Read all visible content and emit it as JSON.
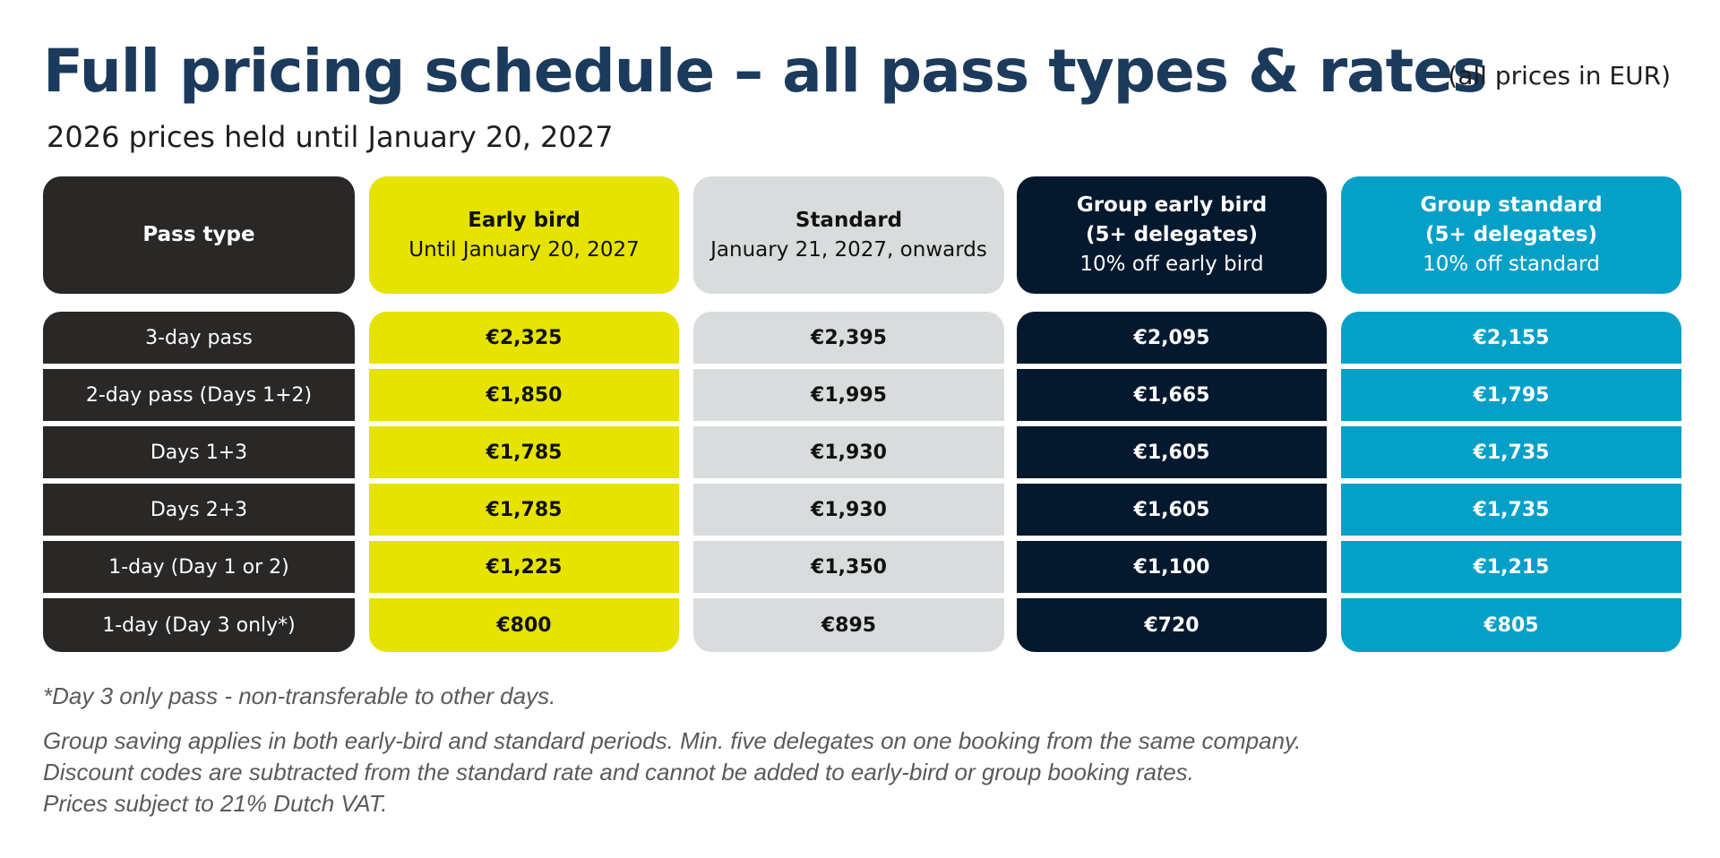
{
  "title": "Full pricing schedule – all pass types & rates",
  "currency_note": "(all prices in EUR)",
  "subtitle": "2026 prices held until January 20, 2027",
  "colors": {
    "title": "#1b3a5c",
    "pass_type": "#2a2827",
    "early_bird": "#e6e300",
    "standard": "#d9dcdd",
    "group_early_bird": "#04182e",
    "group_standard": "#05a0c8"
  },
  "table": {
    "headers": [
      {
        "title": "Pass type",
        "lines": []
      },
      {
        "title": "Early bird",
        "lines": [
          "Until January 20, 2027"
        ]
      },
      {
        "title": "Standard",
        "lines": [
          "January 21, 2027, onwards"
        ]
      },
      {
        "title": "Group early bird",
        "lines": [
          "(5+ delegates)",
          "10% off early bird"
        ]
      },
      {
        "title": "Group standard",
        "lines": [
          "(5+ delegates)",
          "10% off standard"
        ]
      }
    ],
    "rows": [
      {
        "pass": "3-day pass",
        "early_bird": "€2,325",
        "standard": "€2,395",
        "group_early_bird": "€2,095",
        "group_standard": "€2,155"
      },
      {
        "pass": "2-day pass (Days 1+2)",
        "early_bird": "€1,850",
        "standard": "€1,995",
        "group_early_bird": "€1,665",
        "group_standard": "€1,795"
      },
      {
        "pass": "Days 1+3",
        "early_bird": "€1,785",
        "standard": "€1,930",
        "group_early_bird": "€1,605",
        "group_standard": "€1,735"
      },
      {
        "pass": "Days 2+3",
        "early_bird": "€1,785",
        "standard": "€1,930",
        "group_early_bird": "€1,605",
        "group_standard": "€1,735"
      },
      {
        "pass": "1-day (Day 1 or 2)",
        "early_bird": "€1,225",
        "standard": "€1,350",
        "group_early_bird": "€1,100",
        "group_standard": "€1,215"
      },
      {
        "pass": "1-day (Day 3 only*)",
        "early_bird": "€800",
        "standard": "€895",
        "group_early_bird": "€720",
        "group_standard": "€805"
      }
    ]
  },
  "footnotes": {
    "day3": "*Day 3 only pass - non-transferable to other days.",
    "group": "Group saving applies in both early-bird and standard periods. Min. five delegates on one booking from the same company.",
    "discount": "Discount codes are subtracted from the standard rate and cannot be added to early-bird or group booking rates.",
    "vat": "Prices subject to 21% Dutch VAT."
  }
}
